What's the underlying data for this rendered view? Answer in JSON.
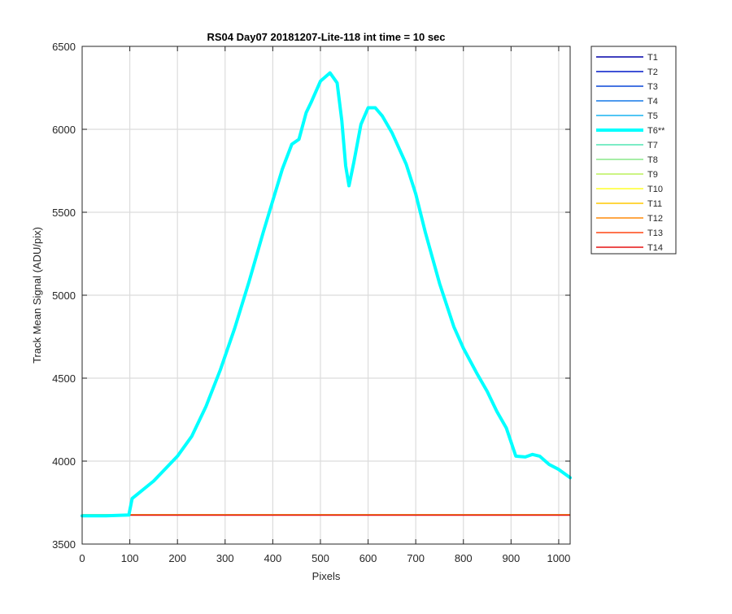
{
  "chart_data": {
    "type": "line",
    "title": "RS04 Day07 20181207-Lite-118 int time = 10 sec",
    "xlabel": "Pixels",
    "ylabel": "Track Mean Signal (ADU/pix)",
    "xlim": [
      0,
      1024
    ],
    "ylim": [
      3500,
      6500
    ],
    "xticks": [
      0,
      100,
      200,
      300,
      400,
      500,
      600,
      700,
      800,
      900,
      1000
    ],
    "yticks": [
      3500,
      4000,
      4500,
      5000,
      5500,
      6000,
      6500
    ],
    "grid": true,
    "legend_position": "outside-right",
    "series": [
      {
        "name": "T1",
        "color": "#0000a8",
        "baseline": 3676
      },
      {
        "name": "T2",
        "color": "#0018c8",
        "baseline": 3676
      },
      {
        "name": "T3",
        "color": "#0a46d8",
        "baseline": 3676
      },
      {
        "name": "T4",
        "color": "#1478e8",
        "baseline": 3676
      },
      {
        "name": "T5",
        "color": "#18b4f0",
        "baseline": 3676
      },
      {
        "name": "T6**",
        "color": "#00ffff",
        "highlight": true,
        "x": [
          0,
          50,
          98,
          105,
          120,
          150,
          180,
          200,
          230,
          260,
          290,
          320,
          350,
          380,
          400,
          420,
          440,
          455,
          470,
          480,
          500,
          520,
          535,
          545,
          553,
          560,
          570,
          585,
          600,
          615,
          630,
          650,
          680,
          700,
          720,
          750,
          780,
          800,
          830,
          850,
          870,
          890,
          910,
          930,
          945,
          960,
          980,
          1000,
          1024
        ],
        "values": [
          3670,
          3670,
          3675,
          3775,
          3810,
          3880,
          3970,
          4030,
          4150,
          4330,
          4550,
          4800,
          5080,
          5380,
          5570,
          5760,
          5910,
          5940,
          6100,
          6160,
          6290,
          6340,
          6280,
          6050,
          5780,
          5660,
          5800,
          6030,
          6130,
          6130,
          6080,
          5980,
          5790,
          5610,
          5380,
          5070,
          4810,
          4680,
          4520,
          4420,
          4300,
          4200,
          4030,
          4025,
          4040,
          4030,
          3980,
          3950,
          3900
        ]
      },
      {
        "name": "T7",
        "color": "#50e6b4",
        "baseline": 3678
      },
      {
        "name": "T8",
        "color": "#8ae88a",
        "baseline": 3678
      },
      {
        "name": "T9",
        "color": "#bcf05a",
        "baseline": 3677
      },
      {
        "name": "T10",
        "color": "#ffff28",
        "baseline": 3676
      },
      {
        "name": "T11",
        "color": "#ffc800",
        "baseline": 3676
      },
      {
        "name": "T12",
        "color": "#ff8c0a",
        "baseline": 3676
      },
      {
        "name": "T13",
        "color": "#ff4614",
        "baseline": 3675
      },
      {
        "name": "T14",
        "color": "#e61414",
        "baseline": 3674
      }
    ]
  }
}
